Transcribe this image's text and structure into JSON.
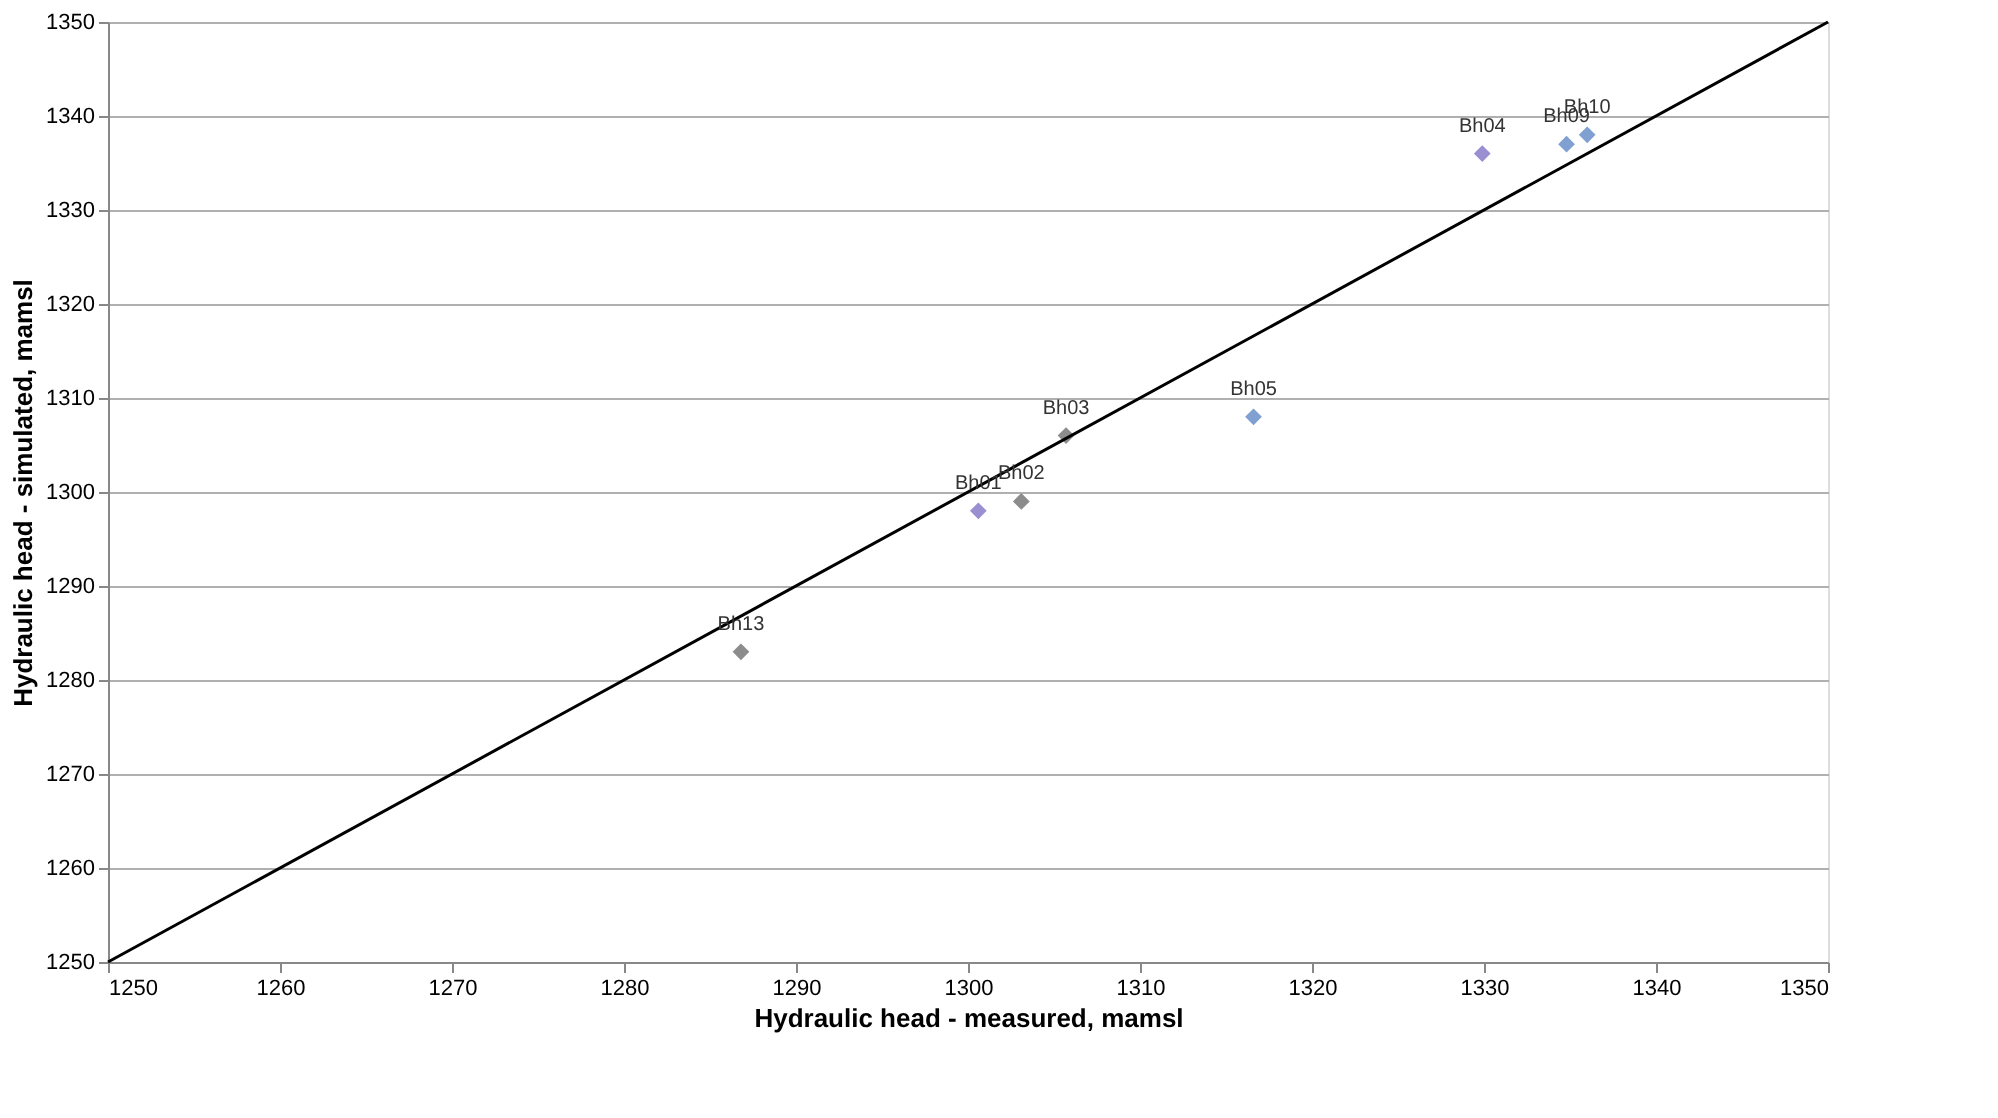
{
  "chart_data": {
    "type": "scatter",
    "xlabel": "Hydraulic head - measured, mamsl",
    "ylabel": "Hydraulic head - simulated, mamsl",
    "xlim": [
      1250,
      1350
    ],
    "ylim": [
      1250,
      1350
    ],
    "xticks": [
      1250,
      1260,
      1270,
      1280,
      1290,
      1300,
      1310,
      1320,
      1330,
      1340,
      1350
    ],
    "yticks": [
      1250,
      1260,
      1270,
      1280,
      1290,
      1300,
      1310,
      1320,
      1330,
      1340,
      1350
    ],
    "grid": "y",
    "marker": "diamond",
    "series": [
      {
        "type": "scatter",
        "x": [
          1286.8,
          1300.6,
          1303.1,
          1305.7,
          1316.6,
          1329.9,
          1334.8,
          1336.0
        ],
        "values": [
          1283,
          1298,
          1299,
          1306,
          1308,
          1336,
          1337,
          1338
        ],
        "colors": [
          "#8c8c8c",
          "#9a8fd0",
          "#8c8c8c",
          "#8c8c8c",
          "#7fa0d0",
          "#9a8fd0",
          "#7fa0d0",
          "#7fa0d0"
        ]
      },
      {
        "type": "line",
        "x": [
          1250,
          1350
        ],
        "values": [
          1250,
          1350
        ],
        "color": "#000000",
        "line_style": "solid",
        "marker": "none"
      }
    ],
    "annotations": [
      {
        "text": "Bh13",
        "x": 1286.8,
        "y": 1283
      },
      {
        "text": "Bh01",
        "x": 1300.6,
        "y": 1298
      },
      {
        "text": "Bh02",
        "x": 1303.1,
        "y": 1299
      },
      {
        "text": "Bh03",
        "x": 1305.7,
        "y": 1306
      },
      {
        "text": "Bh05",
        "x": 1316.6,
        "y": 1308
      },
      {
        "text": "Bh04",
        "x": 1329.9,
        "y": 1336
      },
      {
        "text": "Bh09",
        "x": 1334.8,
        "y": 1337
      },
      {
        "text": "Bh10",
        "x": 1336.0,
        "y": 1338
      }
    ]
  }
}
